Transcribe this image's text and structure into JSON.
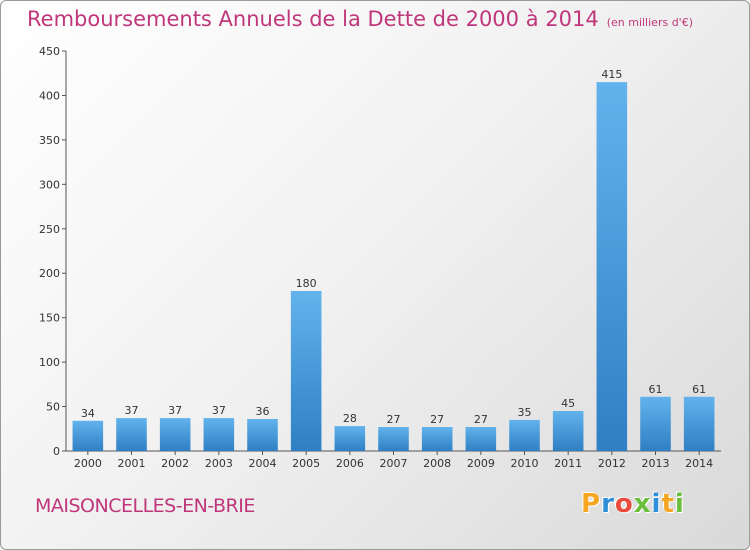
{
  "chart_data": {
    "type": "bar",
    "title": "Remboursements Annuels de la Dette de 2000 à 2014",
    "subtitle": "(en milliers d'€)",
    "categories": [
      "2000",
      "2001",
      "2002",
      "2003",
      "2004",
      "2005",
      "2006",
      "2007",
      "2008",
      "2009",
      "2010",
      "2011",
      "2012",
      "2013",
      "2014"
    ],
    "values": [
      34,
      37,
      37,
      37,
      36,
      180,
      28,
      27,
      27,
      27,
      35,
      45,
      415,
      61,
      61
    ],
    "ylim": [
      0,
      450
    ],
    "yticks": [
      0,
      50,
      100,
      150,
      200,
      250,
      300,
      350,
      400,
      450
    ],
    "grid": false,
    "colors": {
      "bar_light": "#62b3ec",
      "bar_dark": "#2f7fc4",
      "axis": "#555555",
      "text": "#333333"
    }
  },
  "footer": {
    "commune": "MAISONCELLES-EN-BRIE",
    "logo_text": "Proxiti",
    "logo_colors": [
      "#f5a623",
      "#2f8fd8",
      "#e94b3c",
      "#6abf3a",
      "#2f8fd8",
      "#f5a623",
      "#6abf3a"
    ]
  }
}
